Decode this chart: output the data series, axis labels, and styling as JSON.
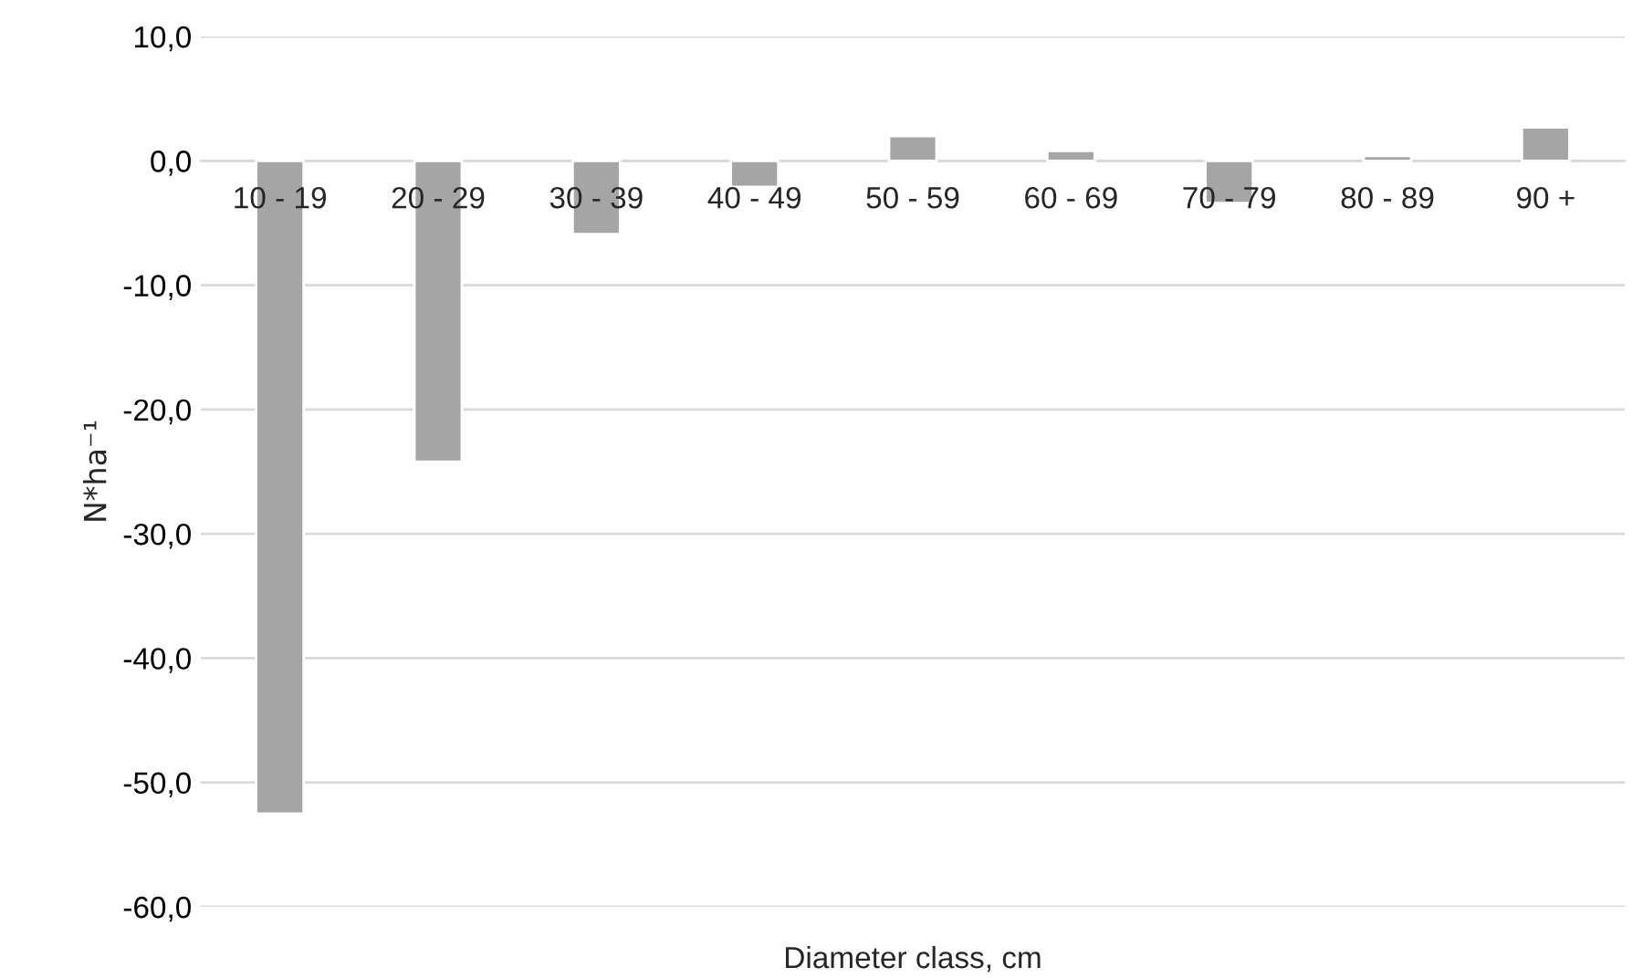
{
  "chart_data": {
    "type": "bar",
    "xlabel": "Diameter class, cm",
    "ylabel": "N*ha⁻¹",
    "categories": [
      "10 - 19",
      "20 - 29",
      "30 - 39",
      "40 - 49",
      "50 - 59",
      "60 - 69",
      "70 - 79",
      "80 - 89",
      "90 +"
    ],
    "values": [
      -52.5,
      -24.2,
      -5.9,
      -2.1,
      2.0,
      0.8,
      -3.4,
      0.4,
      2.7
    ],
    "color": "#a5a5a5",
    "ylim": [
      -60,
      10
    ],
    "yticks": [
      {
        "value": -60,
        "label": "-60,0"
      },
      {
        "value": -50,
        "label": "-50,0"
      },
      {
        "value": -40,
        "label": "-40,0"
      },
      {
        "value": -30,
        "label": "-30,0"
      },
      {
        "value": -20,
        "label": "-20,0"
      },
      {
        "value": -10,
        "label": "-10,0"
      },
      {
        "value": 0,
        "label": "0,0"
      },
      {
        "value": 10,
        "label": "10,0"
      }
    ],
    "grid": "y"
  }
}
